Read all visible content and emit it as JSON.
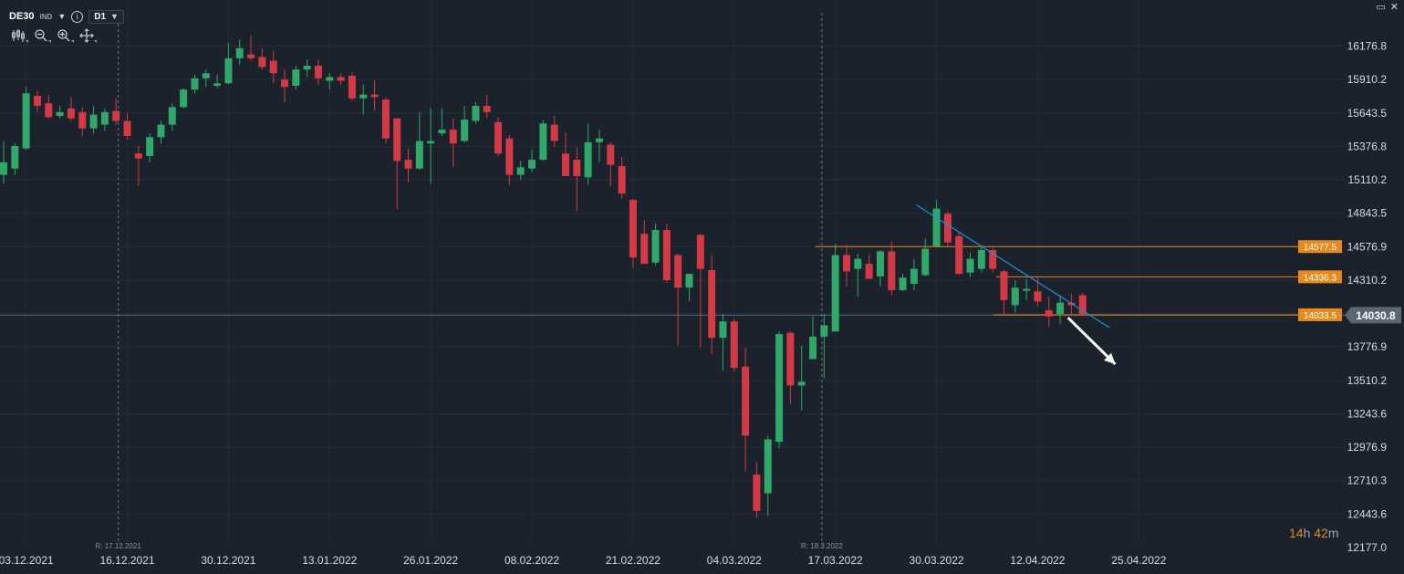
{
  "symbol": {
    "name": "DE30",
    "market": "IND",
    "timeframe": "D1",
    "info_icon": "info-icon"
  },
  "toolbar_icons": [
    "candlestick-icon",
    "zoom-out-icon",
    "zoom-in-icon",
    "move-crosshair-icon"
  ],
  "window_icons": [
    "maximize-icon",
    "close-icon"
  ],
  "countdown": {
    "hours": "14",
    "h_unit": "h",
    "minutes": "42",
    "m_unit": "m"
  },
  "colors": {
    "background": "#1b222b",
    "grid": "#232c36",
    "bull": "#2fa86a",
    "bear": "#d43a45",
    "level": "#e58a1e",
    "trendline": "#1e8fd8",
    "current_price_line": "#4d6b8a",
    "current_price_tag": "#5b6673",
    "arrow": "#ffffff"
  },
  "chart_data": {
    "type": "candlestick",
    "ylim": [
      12177.0,
      16377.0
    ],
    "y_ticks": [
      16176.8,
      15910.2,
      15643.5,
      15376.8,
      15110.2,
      14843.5,
      14576.9,
      14310.2,
      14043.5,
      13776.9,
      13510.2,
      13243.6,
      12976.9,
      12710.3,
      12443.6,
      12177.0
    ],
    "y_tick_labels": [
      "16176.8",
      "15910.2",
      "15643.5",
      "15376.8",
      "15110.2",
      "14843.5",
      "14576.9",
      "14310.2",
      "14043.5",
      "13776.9",
      "13510.2",
      "13243.6",
      "12976.9",
      "12710.3",
      "12443.6",
      "12177.0"
    ],
    "x_labels": [
      {
        "label": "03.12.2021",
        "index": 2
      },
      {
        "label": "16.12.2021",
        "index": 11
      },
      {
        "label": "30.12.2021",
        "index": 20
      },
      {
        "label": "13.01.2022",
        "index": 29
      },
      {
        "label": "26.01.2022",
        "index": 38
      },
      {
        "label": "08.02.2022",
        "index": 47
      },
      {
        "label": "21.02.2022",
        "index": 56
      },
      {
        "label": "04.03.2022",
        "index": 65
      },
      {
        "label": "17.03.2022",
        "index": 74
      },
      {
        "label": "30.03.2022",
        "index": 83
      },
      {
        "label": "12.04.2022",
        "index": 92
      },
      {
        "label": "25.04.2022",
        "index": 101
      }
    ],
    "rollover_markers": [
      {
        "label": "R: 17.12.2021",
        "index": 10.2
      },
      {
        "label": "R: 18.3.2022",
        "index": 72.8
      }
    ],
    "candles": [
      {
        "o": 15150,
        "h": 15420,
        "l": 15080,
        "c": 15250
      },
      {
        "o": 15200,
        "h": 15400,
        "l": 15150,
        "c": 15380
      },
      {
        "o": 15360,
        "h": 15850,
        "l": 15350,
        "c": 15800
      },
      {
        "o": 15780,
        "h": 15820,
        "l": 15650,
        "c": 15700
      },
      {
        "o": 15720,
        "h": 15790,
        "l": 15600,
        "c": 15610
      },
      {
        "o": 15620,
        "h": 15700,
        "l": 15600,
        "c": 15650
      },
      {
        "o": 15680,
        "h": 15770,
        "l": 15580,
        "c": 15600
      },
      {
        "o": 15650,
        "h": 15690,
        "l": 15460,
        "c": 15520
      },
      {
        "o": 15520,
        "h": 15700,
        "l": 15480,
        "c": 15630
      },
      {
        "o": 15550,
        "h": 15680,
        "l": 15500,
        "c": 15650
      },
      {
        "o": 15660,
        "h": 15760,
        "l": 15550,
        "c": 15580
      },
      {
        "o": 15580,
        "h": 15640,
        "l": 15430,
        "c": 15460
      },
      {
        "o": 15320,
        "h": 15380,
        "l": 15060,
        "c": 15280
      },
      {
        "o": 15300,
        "h": 15480,
        "l": 15250,
        "c": 15450
      },
      {
        "o": 15450,
        "h": 15580,
        "l": 15400,
        "c": 15550
      },
      {
        "o": 15550,
        "h": 15720,
        "l": 15500,
        "c": 15690
      },
      {
        "o": 15690,
        "h": 15840,
        "l": 15680,
        "c": 15830
      },
      {
        "o": 15830,
        "h": 15950,
        "l": 15800,
        "c": 15920
      },
      {
        "o": 15920,
        "h": 15990,
        "l": 15850,
        "c": 15960
      },
      {
        "o": 15860,
        "h": 15950,
        "l": 15840,
        "c": 15880
      },
      {
        "o": 15880,
        "h": 16200,
        "l": 15870,
        "c": 16080
      },
      {
        "o": 16080,
        "h": 16230,
        "l": 16030,
        "c": 16160
      },
      {
        "o": 16110,
        "h": 16260,
        "l": 16060,
        "c": 16080
      },
      {
        "o": 16090,
        "h": 16160,
        "l": 15990,
        "c": 16010
      },
      {
        "o": 16060,
        "h": 16140,
        "l": 15880,
        "c": 15960
      },
      {
        "o": 15910,
        "h": 15990,
        "l": 15730,
        "c": 15850
      },
      {
        "o": 15860,
        "h": 16020,
        "l": 15830,
        "c": 15990
      },
      {
        "o": 15990,
        "h": 16070,
        "l": 15930,
        "c": 16020
      },
      {
        "o": 16020,
        "h": 16070,
        "l": 15870,
        "c": 15920
      },
      {
        "o": 15900,
        "h": 15960,
        "l": 15830,
        "c": 15930
      },
      {
        "o": 15930,
        "h": 15960,
        "l": 15870,
        "c": 15900
      },
      {
        "o": 15940,
        "h": 15970,
        "l": 15740,
        "c": 15760
      },
      {
        "o": 15760,
        "h": 15870,
        "l": 15630,
        "c": 15790
      },
      {
        "o": 15790,
        "h": 15900,
        "l": 15660,
        "c": 15770
      },
      {
        "o": 15750,
        "h": 15770,
        "l": 15400,
        "c": 15440
      },
      {
        "o": 15600,
        "h": 15600,
        "l": 14880,
        "c": 15260
      },
      {
        "o": 15270,
        "h": 15360,
        "l": 15090,
        "c": 15200
      },
      {
        "o": 15200,
        "h": 15650,
        "l": 15190,
        "c": 15420
      },
      {
        "o": 15400,
        "h": 15680,
        "l": 15080,
        "c": 15420
      },
      {
        "o": 15480,
        "h": 15680,
        "l": 15460,
        "c": 15510
      },
      {
        "o": 15510,
        "h": 15600,
        "l": 15210,
        "c": 15400
      },
      {
        "o": 15420,
        "h": 15700,
        "l": 15410,
        "c": 15590
      },
      {
        "o": 15580,
        "h": 15730,
        "l": 15560,
        "c": 15700
      },
      {
        "o": 15700,
        "h": 15790,
        "l": 15600,
        "c": 15650
      },
      {
        "o": 15570,
        "h": 15610,
        "l": 15300,
        "c": 15320
      },
      {
        "o": 15440,
        "h": 15470,
        "l": 15070,
        "c": 15150
      },
      {
        "o": 15150,
        "h": 15260,
        "l": 15110,
        "c": 15210
      },
      {
        "o": 15200,
        "h": 15350,
        "l": 15170,
        "c": 15270
      },
      {
        "o": 15270,
        "h": 15590,
        "l": 15260,
        "c": 15560
      },
      {
        "o": 15550,
        "h": 15620,
        "l": 15370,
        "c": 15420
      },
      {
        "o": 15320,
        "h": 15490,
        "l": 15150,
        "c": 15140
      },
      {
        "o": 15270,
        "h": 15370,
        "l": 14860,
        "c": 15140
      },
      {
        "o": 15130,
        "h": 15560,
        "l": 15070,
        "c": 15410
      },
      {
        "o": 15410,
        "h": 15510,
        "l": 15250,
        "c": 15440
      },
      {
        "o": 15390,
        "h": 15410,
        "l": 15060,
        "c": 15230
      },
      {
        "o": 15220,
        "h": 15290,
        "l": 14960,
        "c": 15000
      },
      {
        "o": 14950,
        "h": 14960,
        "l": 14410,
        "c": 14490
      },
      {
        "o": 14680,
        "h": 14790,
        "l": 14440,
        "c": 14440
      },
      {
        "o": 14450,
        "h": 14760,
        "l": 14430,
        "c": 14710
      },
      {
        "o": 14710,
        "h": 14760,
        "l": 14290,
        "c": 14310
      },
      {
        "o": 14510,
        "h": 14520,
        "l": 13790,
        "c": 14250
      },
      {
        "o": 14250,
        "h": 14350,
        "l": 14140,
        "c": 14360
      },
      {
        "o": 14670,
        "h": 14680,
        "l": 13770,
        "c": 14400
      },
      {
        "o": 14390,
        "h": 14510,
        "l": 13720,
        "c": 13850
      },
      {
        "o": 13850,
        "h": 14040,
        "l": 13590,
        "c": 13980
      },
      {
        "o": 13980,
        "h": 14000,
        "l": 13580,
        "c": 13610
      },
      {
        "o": 13620,
        "h": 13770,
        "l": 12780,
        "c": 13070
      },
      {
        "o": 12760,
        "h": 12860,
        "l": 12410,
        "c": 12470
      },
      {
        "o": 12610,
        "h": 13070,
        "l": 12430,
        "c": 13040
      },
      {
        "o": 13020,
        "h": 13900,
        "l": 12970,
        "c": 13880
      },
      {
        "o": 13890,
        "h": 13900,
        "l": 13320,
        "c": 13470
      },
      {
        "o": 13470,
        "h": 13790,
        "l": 13270,
        "c": 13500
      },
      {
        "o": 13680,
        "h": 14020,
        "l": 13680,
        "c": 13860
      },
      {
        "o": 13860,
        "h": 14040,
        "l": 13530,
        "c": 13950
      },
      {
        "o": 13900,
        "h": 14600,
        "l": 13900,
        "c": 14510
      },
      {
        "o": 14510,
        "h": 14590,
        "l": 14260,
        "c": 14380
      },
      {
        "o": 14400,
        "h": 14520,
        "l": 14180,
        "c": 14480
      },
      {
        "o": 14440,
        "h": 14510,
        "l": 14340,
        "c": 14320
      },
      {
        "o": 14340,
        "h": 14550,
        "l": 14260,
        "c": 14540
      },
      {
        "o": 14540,
        "h": 14620,
        "l": 14190,
        "c": 14230
      },
      {
        "o": 14230,
        "h": 14360,
        "l": 14220,
        "c": 14330
      },
      {
        "o": 14280,
        "h": 14480,
        "l": 14230,
        "c": 14400
      },
      {
        "o": 14350,
        "h": 14640,
        "l": 14340,
        "c": 14560
      },
      {
        "o": 14580,
        "h": 14950,
        "l": 14570,
        "c": 14880
      },
      {
        "o": 14840,
        "h": 14860,
        "l": 14570,
        "c": 14610
      },
      {
        "o": 14660,
        "h": 14690,
        "l": 14350,
        "c": 14360
      },
      {
        "o": 14370,
        "h": 14530,
        "l": 14330,
        "c": 14480
      },
      {
        "o": 14400,
        "h": 14590,
        "l": 14370,
        "c": 14550
      },
      {
        "o": 14550,
        "h": 14570,
        "l": 14370,
        "c": 14400
      },
      {
        "o": 14380,
        "h": 14390,
        "l": 14040,
        "c": 14150
      },
      {
        "o": 14110,
        "h": 14310,
        "l": 14050,
        "c": 14250
      },
      {
        "o": 14230,
        "h": 14320,
        "l": 14150,
        "c": 14240
      },
      {
        "o": 14220,
        "h": 14330,
        "l": 14100,
        "c": 14140
      },
      {
        "o": 14070,
        "h": 14180,
        "l": 13940,
        "c": 14020
      },
      {
        "o": 14040,
        "h": 14190,
        "l": 13960,
        "c": 14130
      },
      {
        "o": 14130,
        "h": 14200,
        "l": 14040,
        "c": 14110
      },
      {
        "o": 14190,
        "h": 14210,
        "l": 14020,
        "c": 14040
      }
    ],
    "levels": [
      {
        "value": 14577.5,
        "label": "14577.5",
        "from_index": 72.2
      },
      {
        "value": 14336.3,
        "label": "14336.3",
        "from_index": 88.3
      },
      {
        "value": 14033.5,
        "label": "14033.5",
        "from_index": 88.1
      }
    ],
    "current_price": {
      "value": 14030.8,
      "label": "14030.8"
    },
    "trendline": {
      "from": {
        "index": 81.2,
        "value": 14910
      },
      "to": {
        "index": 98.4,
        "value": 13930
      }
    },
    "arrow": {
      "from": {
        "index": 94.7,
        "value": 14010
      },
      "to": {
        "index": 98.9,
        "value": 13640
      }
    }
  }
}
